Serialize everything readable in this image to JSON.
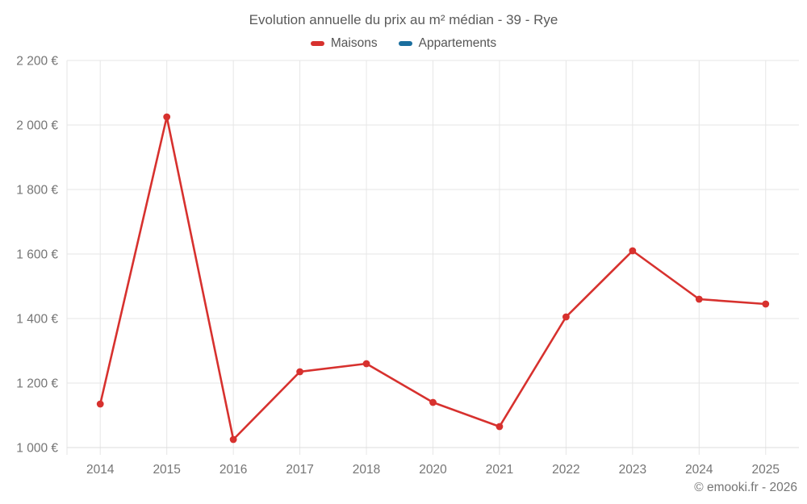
{
  "title": "Evolution annuelle du prix au m² médian - 39 - Rye",
  "legend": [
    {
      "label": "Maisons",
      "color": "#d7312e"
    },
    {
      "label": "Appartements",
      "color": "#1a6e9e"
    }
  ],
  "copyright": "© emooki.fr - 2026",
  "colors": {
    "maisons": "#d7312e",
    "appartements": "#1a6e9e",
    "grid": "#e6e6e6",
    "axis": "#dddddd",
    "tick_text": "#757575",
    "title_text": "#5a5a5a"
  },
  "chart_data": {
    "type": "line",
    "title": "Evolution annuelle du prix au m² médian - 39 - Rye",
    "categories": [
      "2014",
      "2015",
      "2016",
      "2017",
      "2018",
      "2020",
      "2021",
      "2022",
      "2023",
      "2024",
      "2025"
    ],
    "series": [
      {
        "name": "Maisons",
        "color": "#d7312e",
        "values": [
          1135,
          2025,
          1025,
          1235,
          1260,
          1140,
          1065,
          1405,
          1610,
          1460,
          1445
        ]
      },
      {
        "name": "Appartements",
        "color": "#1a6e9e",
        "values": []
      }
    ],
    "xlabel": "",
    "ylabel": "",
    "ylim": [
      1000,
      2200
    ],
    "y_ticks": [
      1000,
      1200,
      1400,
      1600,
      1800,
      2000,
      2200
    ],
    "y_tick_labels": [
      "1 000 €",
      "1 200 €",
      "1 400 €",
      "1 600 €",
      "1 800 €",
      "2 000 €",
      "2 200 €"
    ],
    "grid": true,
    "legend_position": "top"
  }
}
